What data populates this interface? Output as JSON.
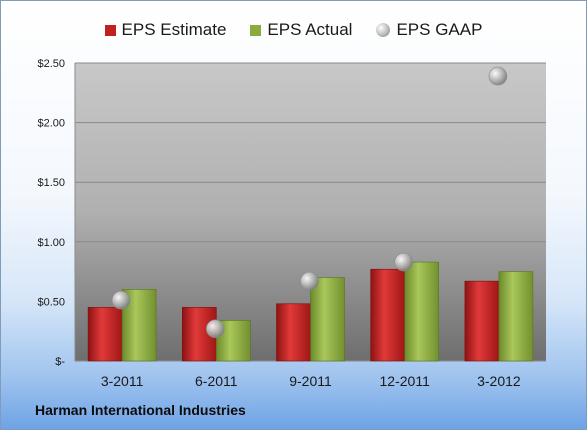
{
  "chart_data": {
    "type": "bar",
    "title": "",
    "xlabel": "",
    "ylabel": "",
    "categories": [
      "3-2011",
      "6-2011",
      "9-2011",
      "12-2011",
      "3-2012"
    ],
    "series": [
      {
        "name": "EPS Estimate",
        "kind": "bar",
        "color": "#c0201f",
        "values": [
          0.45,
          0.45,
          0.48,
          0.77,
          0.67
        ]
      },
      {
        "name": "EPS Actual",
        "kind": "bar",
        "color": "#8cab3f",
        "values": [
          0.6,
          0.34,
          0.7,
          0.83,
          0.75
        ]
      },
      {
        "name": "EPS GAAP",
        "kind": "marker",
        "color": "#a9a9a9",
        "values": [
          0.51,
          0.27,
          0.67,
          0.83,
          2.39
        ]
      }
    ],
    "ylim": [
      0,
      2.5
    ],
    "yticks": [
      0,
      0.5,
      1.0,
      1.5,
      2.0,
      2.5
    ],
    "ytick_labels": [
      "$-",
      "$0.50",
      "$1.00",
      "$1.50",
      "$2.00",
      "$2.50"
    ],
    "grid": true,
    "legend_position": "top"
  },
  "footer": {
    "company": "Harman International Industries"
  }
}
